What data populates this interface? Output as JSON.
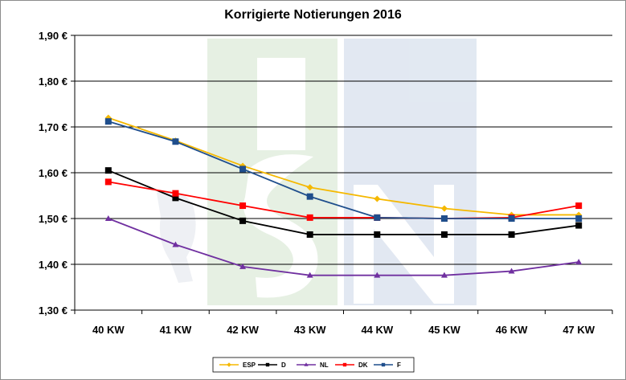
{
  "chart_data": {
    "type": "line",
    "title": "Korrigierte Notierungen 2016",
    "xlabel": "",
    "ylabel": "",
    "categories": [
      "40 KW",
      "41 KW",
      "42 KW",
      "43 KW",
      "44 KW",
      "45 KW",
      "46 KW",
      "47 KW"
    ],
    "ylim": [
      1.3,
      1.9
    ],
    "yticks": [
      {
        "value": 1.9,
        "label": "1,90 €"
      },
      {
        "value": 1.8,
        "label": "1,80 €"
      },
      {
        "value": 1.7,
        "label": "1,70 €"
      },
      {
        "value": 1.6,
        "label": "1,60 €"
      },
      {
        "value": 1.5,
        "label": "1,50 €"
      },
      {
        "value": 1.4,
        "label": "1,40 €"
      },
      {
        "value": 1.3,
        "label": "1,30 €"
      }
    ],
    "grid": true,
    "legend_position": "bottom",
    "series": [
      {
        "name": "ESP",
        "color": "#f5b800",
        "marker": "diamond",
        "values": [
          1.72,
          1.67,
          1.615,
          1.568,
          1.543,
          1.522,
          1.508,
          1.508
        ]
      },
      {
        "name": "D",
        "color": "#000000",
        "marker": "square",
        "values": [
          1.605,
          1.545,
          1.495,
          1.465,
          1.465,
          1.465,
          1.465,
          1.485
        ]
      },
      {
        "name": "NL",
        "color": "#7030a0",
        "marker": "triangle",
        "values": [
          1.5,
          1.443,
          1.395,
          1.376,
          1.376,
          1.376,
          1.385,
          1.405
        ]
      },
      {
        "name": "DK",
        "color": "#ff0000",
        "marker": "square",
        "values": [
          1.58,
          1.555,
          1.528,
          1.502,
          1.502,
          1.5,
          1.502,
          1.528
        ]
      },
      {
        "name": "F",
        "color": "#1f4e8c",
        "marker": "square",
        "values": [
          1.712,
          1.668,
          1.608,
          1.548,
          1.502,
          1.5,
          1.5,
          1.5
        ]
      }
    ]
  }
}
